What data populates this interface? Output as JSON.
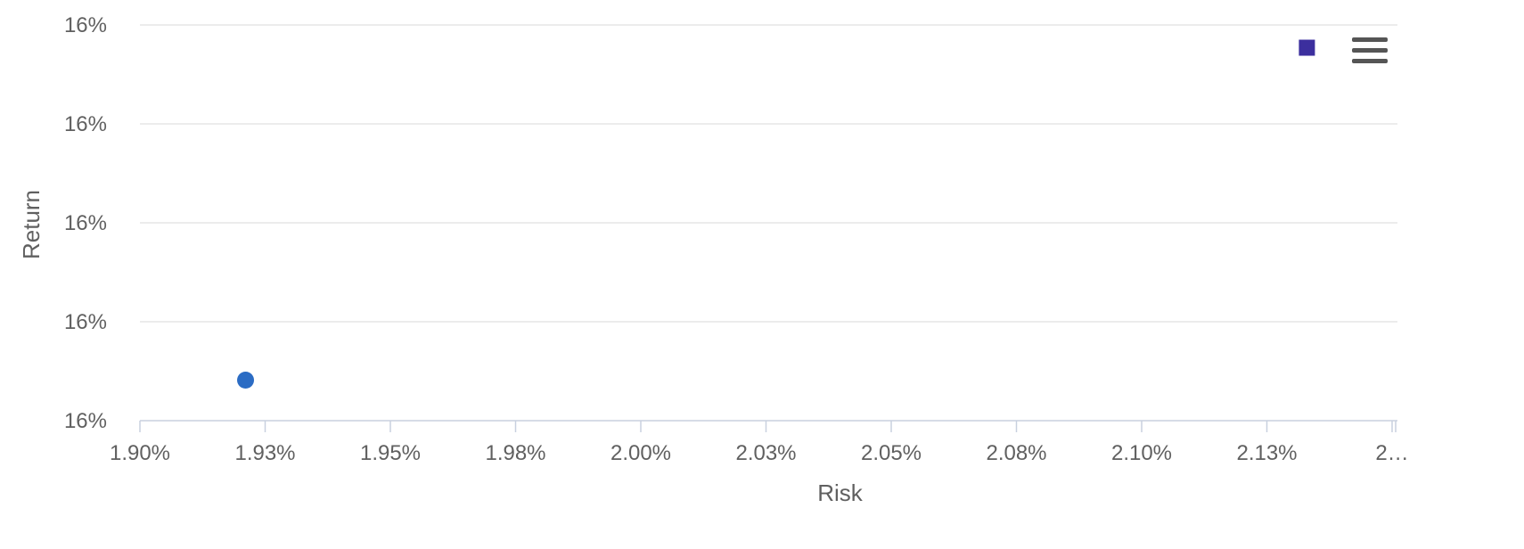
{
  "chart_data": {
    "type": "scatter",
    "title": "",
    "xlabel": "Risk",
    "ylabel": "Return",
    "x_tick_labels": [
      "1.90%",
      "1.93%",
      "1.95%",
      "1.98%",
      "2.00%",
      "2.03%",
      "2.05%",
      "2.08%",
      "2.10%",
      "2.13%",
      "2…"
    ],
    "y_tick_labels": [
      "16%",
      "16%",
      "16%",
      "16%",
      "16%"
    ],
    "xlim": [
      1.9,
      2.15
    ],
    "ylim": [
      0,
      4
    ],
    "grid": true,
    "legend": "none",
    "series": [
      {
        "marker": "circle",
        "color": "#2b6cc4",
        "points": [
          {
            "x": 1.921,
            "y": 0.41
          }
        ]
      },
      {
        "marker": "square",
        "color": "#3c2f9e",
        "points": [
          {
            "x": 2.132,
            "y": 3.77
          }
        ]
      }
    ]
  },
  "toolbar": {
    "menu_icon": "hamburger-menu-icon"
  }
}
